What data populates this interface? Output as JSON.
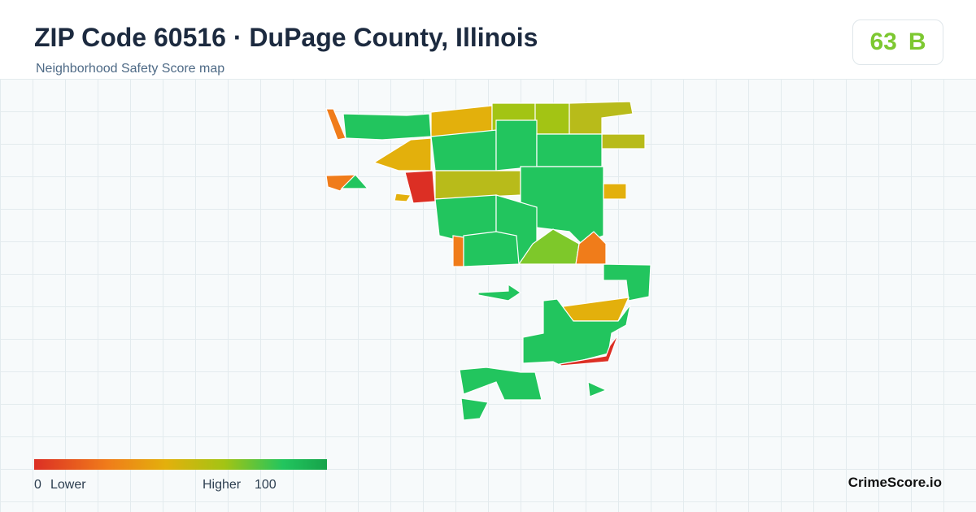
{
  "header": {
    "title": "ZIP Code 60516 · DuPage County, Illinois",
    "subtitle": "Neighborhood Safety Score map"
  },
  "score": {
    "value": 63,
    "grade": "B"
  },
  "legend": {
    "min": 0,
    "low_label": "Lower",
    "high_label": "Higher",
    "max": 100
  },
  "footer": {
    "brand": "CrimeScore.io"
  }
}
